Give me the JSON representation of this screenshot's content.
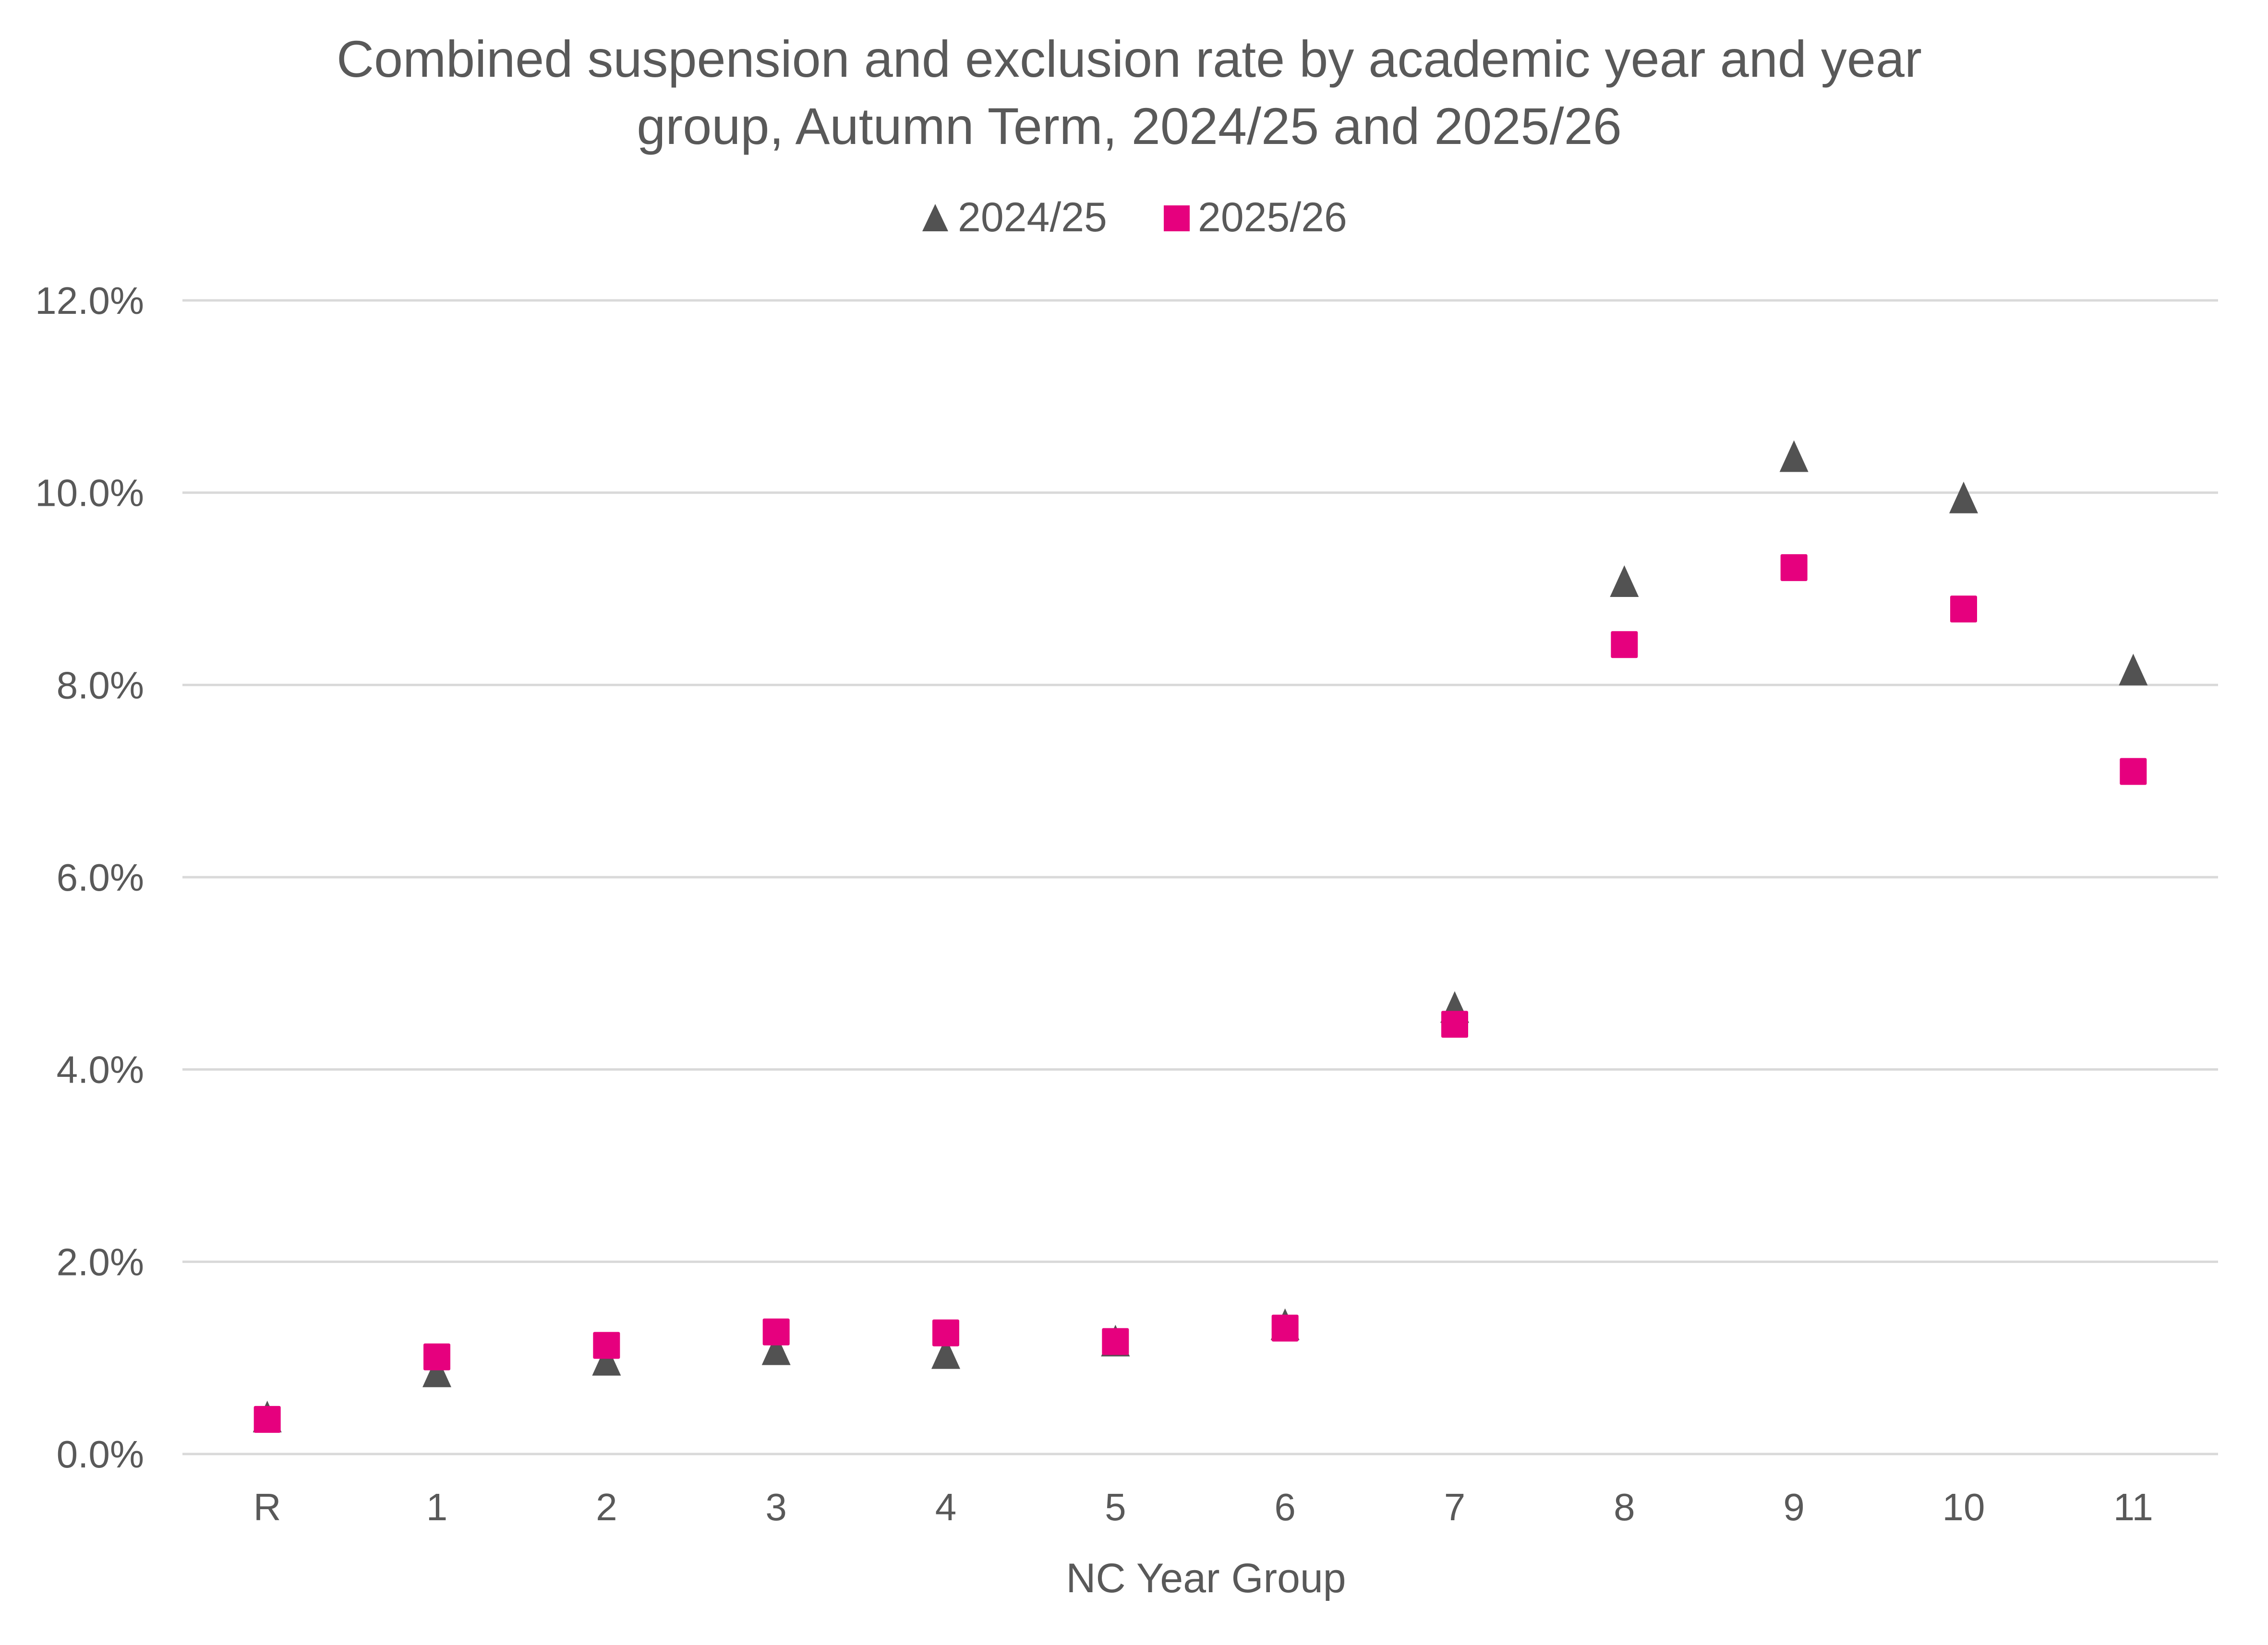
{
  "chart_data": {
    "type": "scatter",
    "title": "Combined suspension and exclusion rate by academic year and year group, Autumn Term, 2024/25 and 2025/26",
    "title_lines": [
      "Combined suspension and exclusion rate by academic year and year",
      "group, Autumn Term, 2024/25 and 2025/26"
    ],
    "xlabel": "NC Year Group",
    "ylabel": "",
    "categories": [
      "R",
      "1",
      "2",
      "3",
      "4",
      "5",
      "6",
      "7",
      "8",
      "9",
      "10",
      "11"
    ],
    "ylim": [
      0,
      12
    ],
    "yticks": [
      0,
      2,
      4,
      6,
      8,
      10,
      12
    ],
    "ytick_labels": [
      "0.0%",
      "2.0%",
      "4.0%",
      "6.0%",
      "8.0%",
      "10.0%",
      "12.0%"
    ],
    "grid": true,
    "legend_position": "top-center",
    "series": [
      {
        "name": "2024/25",
        "marker": "triangle",
        "color": "#525252",
        "values": [
          0.39,
          0.86,
          0.98,
          1.09,
          1.05,
          1.18,
          1.35,
          4.65,
          9.08,
          10.38,
          9.95,
          8.16
        ]
      },
      {
        "name": "2025/26",
        "marker": "square",
        "color": "#e6007e",
        "values": [
          0.36,
          1.01,
          1.13,
          1.27,
          1.26,
          1.17,
          1.31,
          4.47,
          8.42,
          9.22,
          8.79,
          7.1
        ]
      }
    ]
  }
}
